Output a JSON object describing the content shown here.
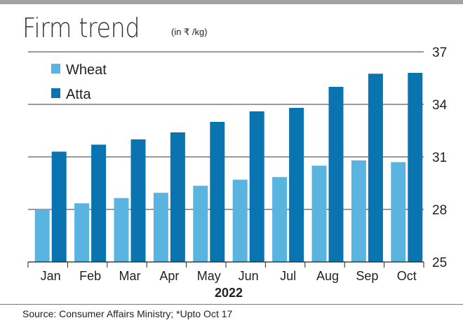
{
  "title": "Firm trend",
  "unit": "(in ₹ /kg)",
  "source": "Source: Consumer Affairs Ministry; *Upto Oct 17",
  "chart_data": {
    "type": "bar",
    "categories": [
      "Jan",
      "Feb",
      "Mar",
      "Apr",
      "May",
      "Jun",
      "Jul",
      "Aug",
      "Sep",
      "Oct"
    ],
    "series": [
      {
        "name": "Wheat",
        "color": "#5ab4e0",
        "values": [
          28.0,
          28.35,
          28.65,
          28.95,
          29.35,
          29.7,
          29.85,
          30.5,
          30.8,
          30.7
        ]
      },
      {
        "name": "Atta",
        "color": "#0a74b0",
        "values": [
          31.3,
          31.7,
          32.0,
          32.4,
          33.0,
          33.6,
          33.8,
          35.0,
          35.75,
          35.8
        ]
      }
    ],
    "ylim": [
      25,
      37
    ],
    "yticks": [
      "25",
      "28",
      "31",
      "34",
      "37"
    ],
    "xgroup_label": "2022",
    "grid": true,
    "legend": "top-left"
  }
}
